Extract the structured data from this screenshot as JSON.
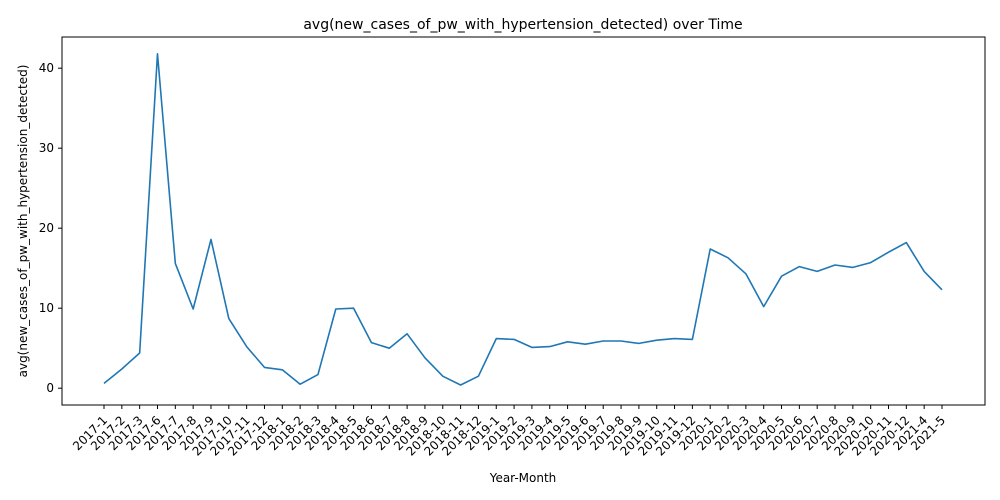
{
  "chart_data": {
    "type": "line",
    "title": "avg(new_cases_of_pw_with_hypertension_detected) over Time",
    "xlabel": "Year-Month",
    "ylabel": "avg(new_cases_of_pw_with_hypertension_detected)",
    "categories": [
      "2017-1",
      "2017-2",
      "2017-3",
      "2017-6",
      "2017-7",
      "2017-8",
      "2017-9",
      "2017-10",
      "2017-11",
      "2017-12",
      "2018-1",
      "2018-2",
      "2018-3",
      "2018-4",
      "2018-5",
      "2018-6",
      "2018-7",
      "2018-8",
      "2018-9",
      "2018-10",
      "2018-11",
      "2018-12",
      "2019-1",
      "2019-2",
      "2019-3",
      "2019-4",
      "2019-5",
      "2019-6",
      "2019-7",
      "2019-8",
      "2019-9",
      "2019-10",
      "2019-11",
      "2019-12",
      "2020-1",
      "2020-2",
      "2020-3",
      "2020-4",
      "2020-5",
      "2020-6",
      "2020-7",
      "2020-8",
      "2020-9",
      "2020-10",
      "2020-11",
      "2020-12",
      "2021-4",
      "2021-5"
    ],
    "series": [
      {
        "values": [
          0.6,
          2.4,
          4.4,
          41.8,
          15.6,
          9.9,
          18.6,
          8.7,
          5.2,
          2.6,
          2.3,
          0.5,
          1.7,
          9.9,
          10.0,
          5.7,
          5.0,
          6.8,
          3.8,
          1.5,
          0.4,
          1.5,
          6.2,
          6.1,
          5.1,
          5.2,
          5.8,
          5.5,
          5.9,
          5.9,
          5.6,
          6.0,
          6.2,
          6.1,
          17.4,
          16.3,
          14.3,
          10.2,
          14.0,
          15.2,
          14.6,
          15.4,
          15.1,
          15.7,
          17.0,
          18.2,
          14.6,
          12.3
        ],
        "color": "#1f77b4"
      }
    ],
    "ylim": [
      -2.1,
      43.9
    ],
    "yticks": [
      0,
      10,
      20,
      30,
      40
    ],
    "grid": false,
    "legend": "none"
  }
}
